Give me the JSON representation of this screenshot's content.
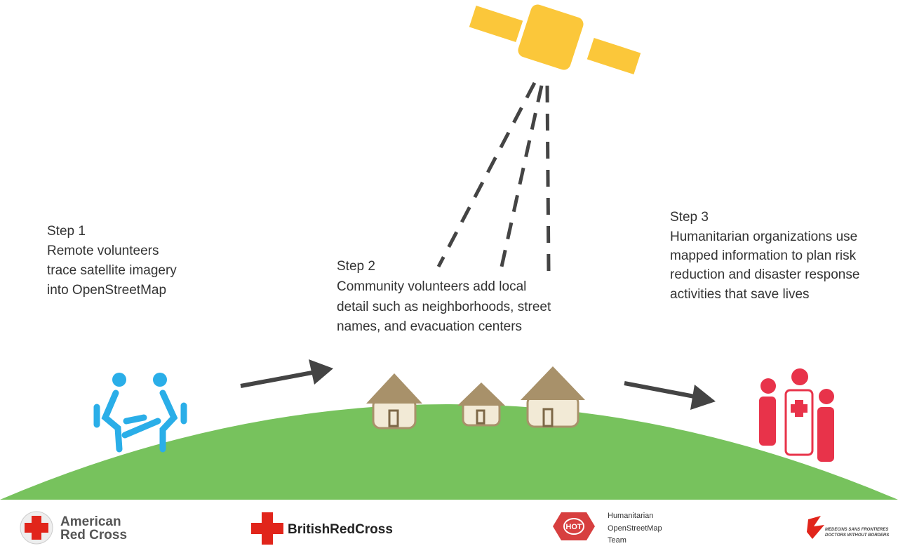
{
  "steps": [
    {
      "title": "Step 1",
      "lines": [
        "Remote volunteers",
        "trace satellite imagery",
        "into OpenStreetMap"
      ]
    },
    {
      "title": "Step 2",
      "lines": [
        "Community volunteers add local",
        "detail such as neighborhoods, street",
        "names, and evacuation centers"
      ]
    },
    {
      "title": "Step 3",
      "lines": [
        "Humanitarian organizations use",
        "mapped information to plan risk",
        "reduction and disaster response",
        "activities that save lives"
      ]
    }
  ],
  "logos": {
    "american_red_cross": [
      "American",
      "Red Cross"
    ],
    "british_red_cross": "BritishRedCross",
    "hot": {
      "badge": "HOT",
      "lines": [
        "Humanitarian",
        "OpenStreetMap",
        "Team"
      ]
    },
    "msf": [
      "MEDECINS SANS FRONTIERES",
      "DOCTORS WITHOUT BORDERS"
    ]
  }
}
